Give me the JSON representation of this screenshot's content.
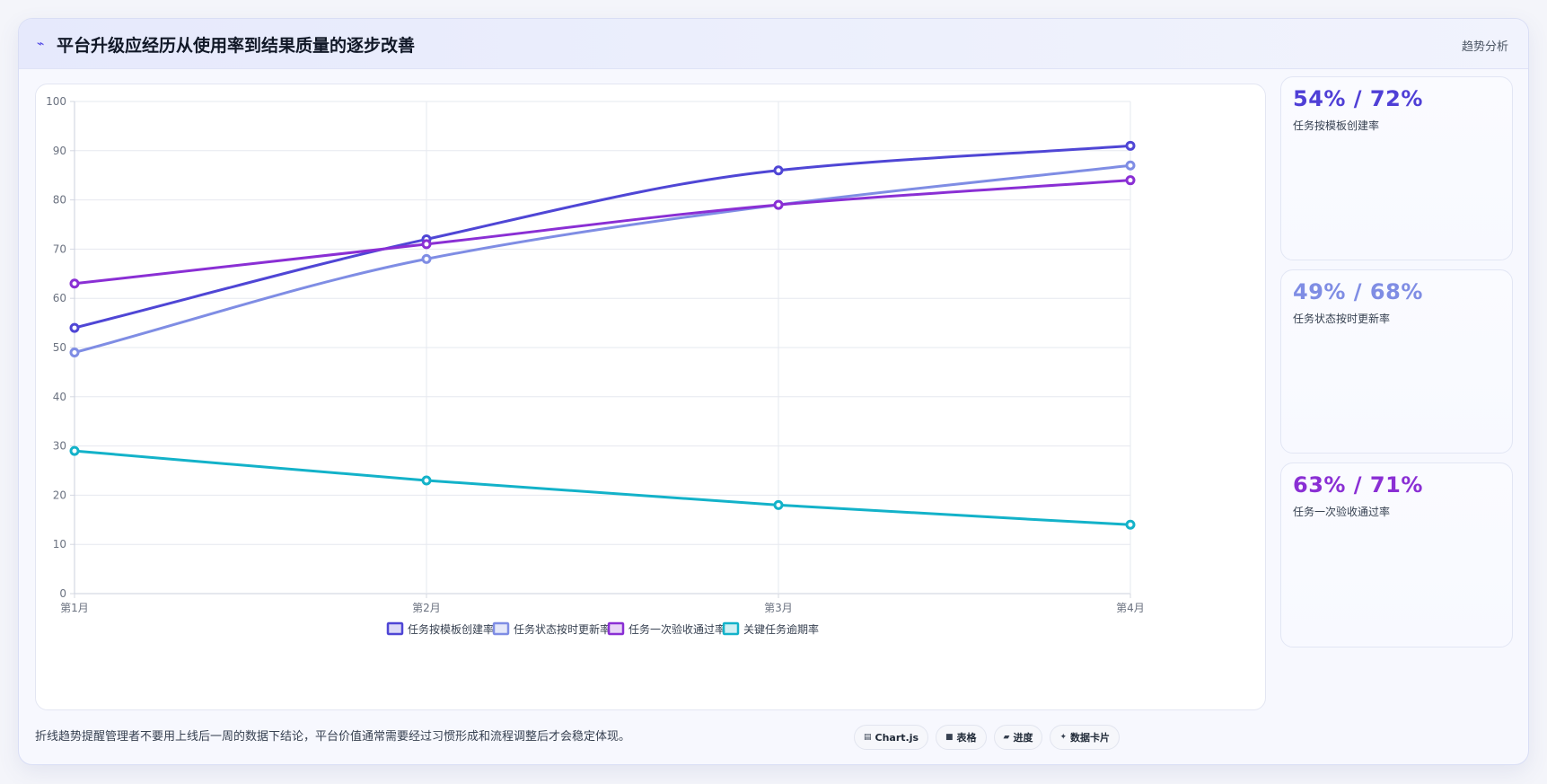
{
  "header": {
    "icon": "lightning-icon",
    "title": "平台升级应经历从使用率到结果质量的逐步改善",
    "tag": "趋势分析"
  },
  "chart_data": {
    "type": "line",
    "title": "",
    "xlabel": "",
    "ylabel": "",
    "categories": [
      "第1月",
      "第2月",
      "第3月",
      "第4月"
    ],
    "ylim": [
      0,
      100
    ],
    "yticks": [
      0,
      10,
      20,
      30,
      40,
      50,
      60,
      70,
      80,
      90,
      100
    ],
    "grid": true,
    "legend": "bottom",
    "series": [
      {
        "name": "任务按模板创建率",
        "values": [
          54,
          72,
          86,
          91
        ],
        "color": "#4f46d5"
      },
      {
        "name": "任务状态按时更新率",
        "values": [
          49,
          68,
          79,
          87
        ],
        "color": "#7f8de4"
      },
      {
        "name": "任务一次验收通过率",
        "values": [
          63,
          71,
          79,
          84
        ],
        "color": "#8a2fd4"
      },
      {
        "name": "关键任务逾期率",
        "values": [
          29,
          23,
          18,
          14
        ],
        "color": "#13b2c9"
      }
    ]
  },
  "kpis": [
    {
      "value": "54% / 72%",
      "label": "任务按模板创建率",
      "color": "#4f3fd6"
    },
    {
      "value": "49% / 68%",
      "label": "任务状态按时更新率",
      "color": "#7f8de4"
    },
    {
      "value": "63% / 71%",
      "label": "任务一次验收通过率",
      "color": "#8a2fd4"
    }
  ],
  "footer": {
    "note": "折线趋势提醒管理者不要用上线后一周的数据下结论，平台价值通常需要经过习惯形成和流程调整后才会稳定体现。",
    "chips": [
      {
        "icon": "chart-icon",
        "glyph": "▤",
        "label": "Chart.js"
      },
      {
        "icon": "table-icon",
        "glyph": "■",
        "label": "表格"
      },
      {
        "icon": "progress-icon",
        "glyph": "▰",
        "label": "进度"
      },
      {
        "icon": "sparkle-icon",
        "glyph": "✦",
        "label": "数据卡片"
      }
    ]
  }
}
